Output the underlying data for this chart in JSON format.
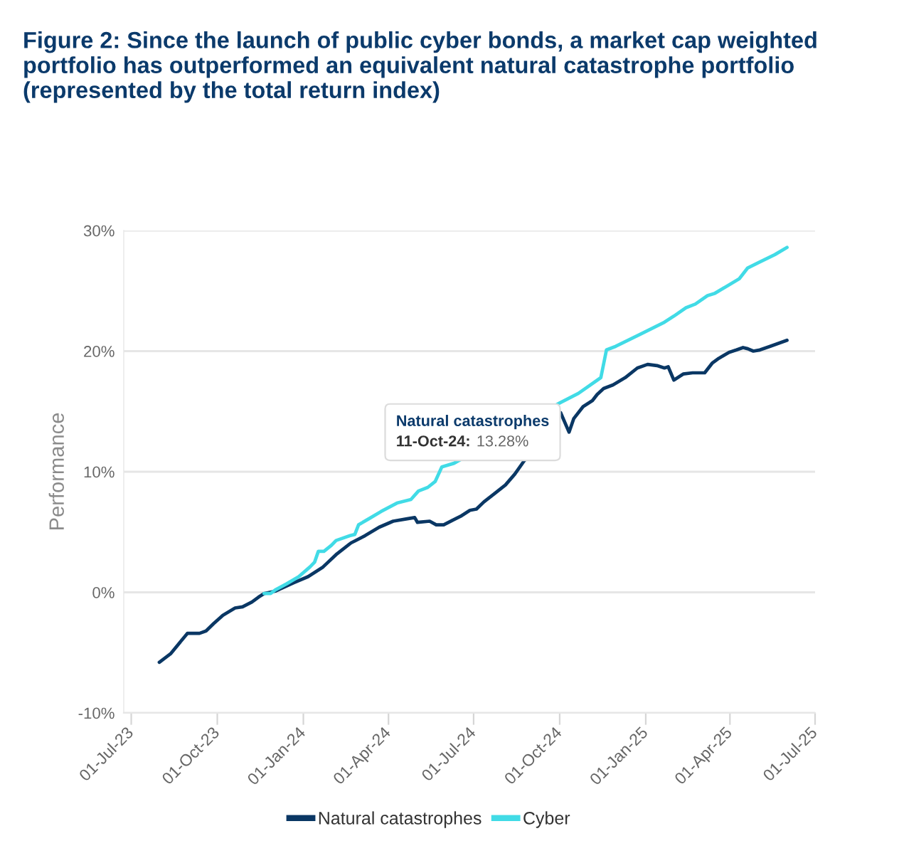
{
  "chart_data": {
    "type": "line",
    "title": "Figure 2: Since the launch of public cyber bonds, a market cap weighted portfolio has outperformed an equivalent natural catastrophe portfolio (represented by the total return index)",
    "ylabel": "Performance",
    "xlim": [
      "2023-06-23",
      "2025-07-01"
    ],
    "xticks": [
      {
        "value": "2023-07-01",
        "label": "01-Jul-23"
      },
      {
        "value": "2023-10-01",
        "label": "01-Oct-23"
      },
      {
        "value": "2024-01-01",
        "label": "01-Jan-24"
      },
      {
        "value": "2024-04-01",
        "label": "01-Apr-24"
      },
      {
        "value": "2024-07-01",
        "label": "01-Jul-24"
      },
      {
        "value": "2024-10-01",
        "label": "01-Oct-24"
      },
      {
        "value": "2025-01-01",
        "label": "01-Jan-25"
      },
      {
        "value": "2025-04-01",
        "label": "01-Apr-25"
      },
      {
        "value": "2025-07-01",
        "label": "01-Jul-25"
      }
    ],
    "ylim": [
      -10,
      30
    ],
    "yticks": [
      {
        "value": -10,
        "label": "-10%"
      },
      {
        "value": 0,
        "label": "0%"
      },
      {
        "value": 10,
        "label": "10%"
      },
      {
        "value": 20,
        "label": "20%"
      },
      {
        "value": 30,
        "label": "30%"
      }
    ],
    "grid": "y",
    "legend": "bottom",
    "line_style": "solid",
    "series": [
      {
        "name": "Natural catastrophes",
        "color": "#0a3764",
        "x": [
          "2023-07-31",
          "2023-08-12",
          "2023-08-30",
          "2023-09-12",
          "2023-09-19",
          "2023-09-27",
          "2023-10-07",
          "2023-10-20",
          "2023-10-28",
          "2023-11-07",
          "2023-11-14",
          "2023-11-20",
          "2023-12-02",
          "2023-12-22",
          "2024-01-06",
          "2024-01-22",
          "2024-02-06",
          "2024-02-21",
          "2024-03-07",
          "2024-03-22",
          "2024-04-06",
          "2024-04-21",
          "2024-04-29",
          "2024-05-02",
          "2024-05-15",
          "2024-05-22",
          "2024-05-30",
          "2024-06-09",
          "2024-06-17",
          "2024-06-27",
          "2024-07-04",
          "2024-07-12",
          "2024-07-22",
          "2024-08-04",
          "2024-08-14",
          "2024-08-24",
          "2024-10-02",
          "2024-10-11",
          "2024-10-16",
          "2024-10-26",
          "2024-11-05",
          "2024-11-10",
          "2024-11-17",
          "2024-11-27",
          "2024-12-10",
          "2024-12-23",
          "2025-01-03",
          "2025-01-13",
          "2025-01-21",
          "2025-01-25",
          "2025-01-31",
          "2025-02-10",
          "2025-02-20",
          "2025-03-05",
          "2025-03-13",
          "2025-03-20",
          "2025-03-31",
          "2025-04-08",
          "2025-04-15",
          "2025-04-20",
          "2025-04-26",
          "2025-05-03",
          "2025-05-14",
          "2025-06-01"
        ],
        "values": [
          -5.8,
          -5.1,
          -3.4,
          -3.4,
          -3.2,
          -2.6,
          -1.9,
          -1.3,
          -1.2,
          -0.8,
          -0.4,
          -0.1,
          0.1,
          0.8,
          1.3,
          2.1,
          3.2,
          4.1,
          4.7,
          5.4,
          5.9,
          6.1,
          6.2,
          5.8,
          5.9,
          5.6,
          5.6,
          6.0,
          6.3,
          6.8,
          6.9,
          7.5,
          8.1,
          8.9,
          9.8,
          10.9,
          14.9,
          13.28,
          14.4,
          15.4,
          15.9,
          16.4,
          16.9,
          17.2,
          17.8,
          18.6,
          18.9,
          18.8,
          18.6,
          18.7,
          17.6,
          18.1,
          18.2,
          18.2,
          19.0,
          19.4,
          19.9,
          20.1,
          20.3,
          20.2,
          20.0,
          20.1,
          20.4,
          20.9
        ]
      },
      {
        "name": "Cyber",
        "color": "#41dbe6",
        "x": [
          "2023-11-20",
          "2023-11-27",
          "2023-12-02",
          "2023-12-14",
          "2023-12-27",
          "2024-01-08",
          "2024-01-13",
          "2024-01-17",
          "2024-01-23",
          "2024-01-31",
          "2024-02-05",
          "2024-02-20",
          "2024-02-25",
          "2024-02-29",
          "2024-03-11",
          "2024-03-24",
          "2024-04-10",
          "2024-04-25",
          "2024-05-03",
          "2024-05-13",
          "2024-05-21",
          "2024-05-28",
          "2024-06-10",
          "2024-10-01",
          "2024-10-21",
          "2024-11-14",
          "2024-11-20",
          "2024-11-30",
          "2024-12-26",
          "2025-01-21",
          "2025-01-31",
          "2025-02-13",
          "2025-02-23",
          "2025-03-08",
          "2025-03-16",
          "2025-03-29",
          "2025-04-11",
          "2025-04-20",
          "2025-05-03",
          "2025-05-19",
          "2025-06-01"
        ],
        "values": [
          -0.1,
          -0.1,
          0.2,
          0.7,
          1.3,
          2.1,
          2.5,
          3.4,
          3.4,
          3.9,
          4.3,
          4.7,
          4.8,
          5.6,
          6.1,
          6.7,
          7.4,
          7.7,
          8.4,
          8.7,
          9.2,
          10.4,
          10.7,
          15.7,
          16.5,
          17.8,
          20.1,
          20.4,
          21.4,
          22.4,
          22.9,
          23.6,
          23.9,
          24.6,
          24.8,
          25.4,
          26.0,
          26.9,
          27.4,
          28.0,
          28.6
        ]
      }
    ],
    "annotations": [
      {
        "text": "Natural catastrophes\n11-Oct-24: 13.28%",
        "x": "2024-10-11",
        "y": 13.28
      }
    ]
  }
}
